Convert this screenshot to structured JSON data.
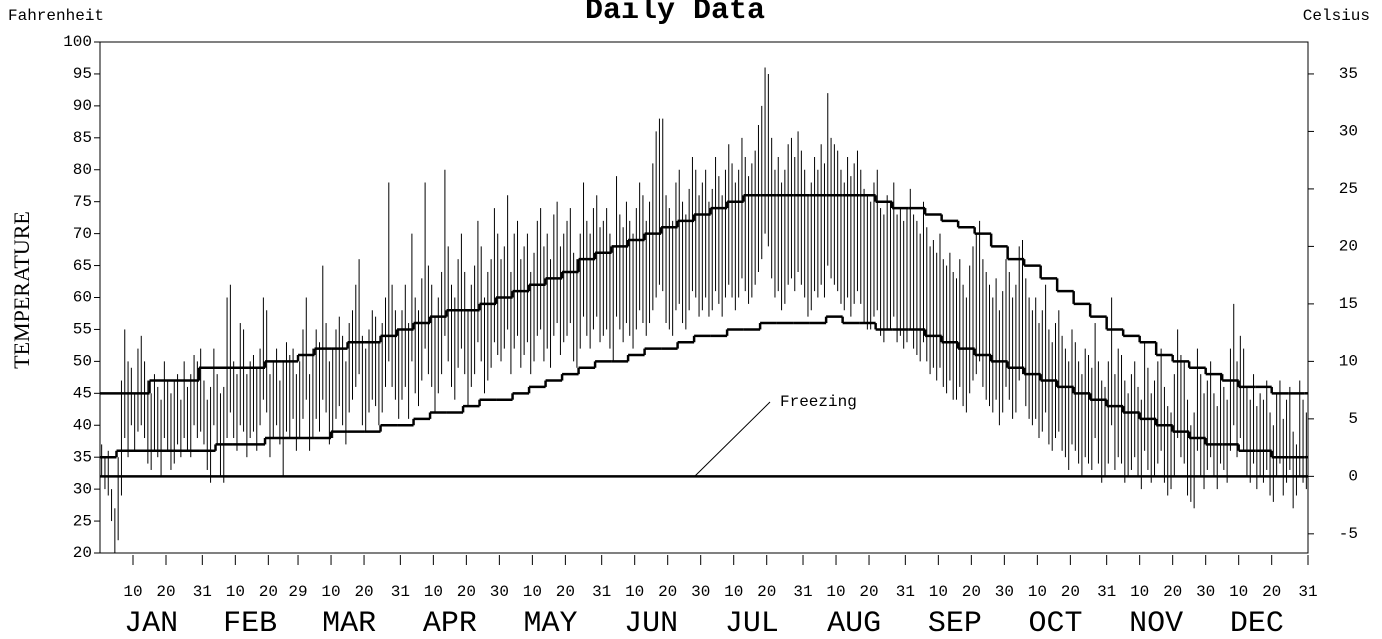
{
  "chart_data": {
    "type": "range",
    "title": "Daily Data",
    "y_unit_label": "Fahrenheit",
    "y2_unit_label": "Celsius",
    "y_label": "TEMPERATURE",
    "annotation": "Freezing",
    "freezing": 32,
    "color": "#000000",
    "xlim": [
      0,
      366
    ],
    "xticks": [
      {
        "value": 10,
        "label": "10"
      },
      {
        "value": 20,
        "label": "20"
      },
      {
        "value": 31,
        "label": "31"
      },
      {
        "value": 41,
        "label": "10"
      },
      {
        "value": 51,
        "label": "20"
      },
      {
        "value": 60,
        "label": "29"
      },
      {
        "value": 70,
        "label": "10"
      },
      {
        "value": 80,
        "label": "20"
      },
      {
        "value": 91,
        "label": "31"
      },
      {
        "value": 101,
        "label": "10"
      },
      {
        "value": 111,
        "label": "20"
      },
      {
        "value": 121,
        "label": "30"
      },
      {
        "value": 131,
        "label": "10"
      },
      {
        "value": 141,
        "label": "20"
      },
      {
        "value": 152,
        "label": "31"
      },
      {
        "value": 162,
        "label": "10"
      },
      {
        "value": 172,
        "label": "20"
      },
      {
        "value": 182,
        "label": "30"
      },
      {
        "value": 192,
        "label": "10"
      },
      {
        "value": 202,
        "label": "20"
      },
      {
        "value": 213,
        "label": "31"
      },
      {
        "value": 223,
        "label": "10"
      },
      {
        "value": 233,
        "label": "20"
      },
      {
        "value": 244,
        "label": "31"
      },
      {
        "value": 254,
        "label": "10"
      },
      {
        "value": 264,
        "label": "20"
      },
      {
        "value": 274,
        "label": "30"
      },
      {
        "value": 284,
        "label": "10"
      },
      {
        "value": 294,
        "label": "20"
      },
      {
        "value": 305,
        "label": "31"
      },
      {
        "value": 315,
        "label": "10"
      },
      {
        "value": 325,
        "label": "20"
      },
      {
        "value": 335,
        "label": "30"
      },
      {
        "value": 345,
        "label": "10"
      },
      {
        "value": 355,
        "label": "20"
      },
      {
        "value": 366,
        "label": "31"
      }
    ],
    "months": [
      "JAN",
      "FEB",
      "MAR",
      "APR",
      "MAY",
      "JUN",
      "JUL",
      "AUG",
      "SEP",
      "OCT",
      "NOV",
      "DEC"
    ],
    "ylim": [
      20,
      100
    ],
    "yticks": [
      20,
      25,
      30,
      35,
      40,
      45,
      50,
      55,
      60,
      65,
      70,
      75,
      80,
      85,
      90,
      95,
      100
    ],
    "y2lim": [
      -6.6667,
      37.7778
    ],
    "y2ticks": [
      -5,
      0,
      5,
      10,
      15,
      20,
      25,
      30,
      35
    ],
    "high": [
      37,
      35,
      36,
      30,
      27,
      35,
      47,
      55,
      50,
      49,
      45,
      52,
      54,
      50,
      47,
      45,
      48,
      46,
      44,
      50,
      47,
      45,
      47,
      48,
      44,
      50,
      46,
      48,
      51,
      50,
      52,
      47,
      44,
      46,
      52,
      48,
      45,
      46,
      60,
      62,
      50,
      48,
      56,
      55,
      48,
      50,
      51,
      49,
      52,
      60,
      58,
      48,
      50,
      52,
      47,
      50,
      53,
      51,
      52,
      48,
      50,
      55,
      60,
      48,
      52,
      55,
      53,
      65,
      56,
      50,
      52,
      55,
      57,
      54,
      50,
      56,
      58,
      62,
      66,
      54,
      52,
      55,
      58,
      57,
      53,
      56,
      60,
      78,
      62,
      58,
      55,
      58,
      62,
      56,
      70,
      60,
      58,
      63,
      78,
      65,
      62,
      57,
      60,
      64,
      80,
      68,
      62,
      60,
      66,
      70,
      64,
      58,
      62,
      65,
      72,
      68,
      60,
      64,
      66,
      74,
      70,
      66,
      68,
      76,
      64,
      70,
      72,
      66,
      68,
      70,
      64,
      67,
      72,
      74,
      68,
      70,
      66,
      73,
      75,
      68,
      70,
      72,
      74,
      67,
      66,
      70,
      78,
      72,
      70,
      74,
      76,
      71,
      72,
      74,
      70,
      68,
      79,
      73,
      71,
      75,
      72,
      70,
      74,
      78,
      76,
      72,
      75,
      81,
      86,
      88,
      88,
      76,
      74,
      72,
      78,
      80,
      75,
      73,
      77,
      82,
      80,
      76,
      78,
      80,
      75,
      77,
      82,
      79,
      76,
      80,
      84,
      81,
      78,
      80,
      85,
      82,
      79,
      81,
      83,
      87,
      90,
      96,
      95,
      85,
      80,
      82,
      78,
      80,
      84,
      85,
      82,
      86,
      83,
      80,
      76,
      78,
      82,
      80,
      84,
      81,
      92,
      85,
      84,
      83,
      80,
      78,
      82,
      79,
      81,
      83,
      80,
      77,
      76,
      75,
      78,
      80,
      74,
      73,
      76,
      75,
      78,
      73,
      74,
      72,
      74,
      77,
      73,
      72,
      70,
      75,
      71,
      68,
      69,
      67,
      70,
      66,
      65,
      67,
      64,
      63,
      66,
      62,
      60,
      65,
      68,
      70,
      72,
      66,
      64,
      62,
      60,
      63,
      58,
      61,
      66,
      64,
      60,
      62,
      68,
      69,
      63,
      60,
      58,
      60,
      56,
      58,
      62,
      55,
      53,
      56,
      58,
      54,
      52,
      50,
      55,
      53,
      50,
      48,
      52,
      51,
      49,
      56,
      50,
      47,
      46,
      50,
      60,
      48,
      52,
      51,
      47,
      45,
      48,
      50,
      46,
      44,
      53,
      49,
      45,
      47,
      50,
      52,
      46,
      43,
      42,
      48,
      55,
      51,
      50,
      44,
      40,
      42,
      52,
      48,
      45,
      47,
      50,
      45,
      43,
      48,
      46,
      44,
      52,
      59,
      50,
      54,
      52,
      46,
      44,
      48,
      43,
      45,
      44,
      47,
      42,
      40,
      45,
      47,
      41,
      44,
      46,
      39,
      37,
      47,
      44,
      42
    ],
    "low": [
      32,
      30,
      29,
      25,
      20,
      22,
      29,
      38,
      35,
      40,
      36,
      39,
      40,
      38,
      34,
      33,
      36,
      35,
      32,
      38,
      36,
      33,
      34,
      37,
      35,
      38,
      36,
      35,
      40,
      38,
      39,
      37,
      33,
      31,
      40,
      37,
      32,
      31,
      38,
      42,
      38,
      36,
      40,
      39,
      35,
      38,
      39,
      36,
      40,
      44,
      42,
      35,
      38,
      40,
      37,
      32,
      39,
      38,
      41,
      36,
      38,
      41,
      44,
      36,
      38,
      41,
      39,
      44,
      42,
      37,
      38,
      41,
      43,
      40,
      37,
      42,
      44,
      46,
      48,
      40,
      39,
      42,
      44,
      43,
      40,
      42,
      46,
      50,
      46,
      44,
      41,
      44,
      46,
      41,
      50,
      45,
      43,
      47,
      52,
      48,
      46,
      42,
      45,
      48,
      54,
      50,
      46,
      44,
      49,
      52,
      48,
      43,
      46,
      48,
      53,
      50,
      45,
      47,
      49,
      53,
      51,
      50,
      52,
      55,
      48,
      52,
      54,
      49,
      51,
      53,
      48,
      50,
      54,
      55,
      50,
      52,
      49,
      54,
      56,
      51,
      53,
      54,
      56,
      50,
      49,
      52,
      57,
      54,
      52,
      55,
      57,
      53,
      54,
      55,
      52,
      50,
      57,
      55,
      53,
      56,
      54,
      52,
      55,
      58,
      56,
      54,
      56,
      58,
      60,
      62,
      61,
      56,
      55,
      54,
      58,
      59,
      56,
      55,
      58,
      61,
      60,
      57,
      58,
      60,
      57,
      58,
      61,
      59,
      57,
      60,
      62,
      60,
      58,
      60,
      63,
      61,
      59,
      60,
      62,
      64,
      66,
      70,
      68,
      63,
      60,
      61,
      58,
      59,
      62,
      63,
      61,
      64,
      62,
      60,
      57,
      58,
      61,
      60,
      62,
      60,
      65,
      63,
      62,
      61,
      59,
      58,
      60,
      57,
      59,
      61,
      59,
      56,
      55,
      55,
      57,
      58,
      54,
      53,
      55,
      55,
      57,
      53,
      54,
      52,
      53,
      55,
      52,
      51,
      50,
      53,
      50,
      48,
      49,
      47,
      49,
      46,
      45,
      47,
      44,
      44,
      46,
      43,
      42,
      45,
      47,
      48,
      50,
      46,
      44,
      43,
      42,
      44,
      40,
      42,
      46,
      44,
      41,
      42,
      47,
      48,
      43,
      41,
      40,
      41,
      38,
      39,
      42,
      37,
      36,
      38,
      39,
      36,
      35,
      33,
      37,
      36,
      34,
      32,
      35,
      34,
      33,
      38,
      34,
      31,
      32,
      34,
      40,
      33,
      35,
      34,
      31,
      32,
      33,
      35,
      32,
      30,
      36,
      33,
      31,
      32,
      34,
      36,
      31,
      29,
      30,
      32,
      38,
      35,
      34,
      29,
      28,
      27,
      36,
      32,
      30,
      33,
      35,
      32,
      30,
      34,
      33,
      31,
      36,
      40,
      35,
      38,
      36,
      32,
      31,
      34,
      30,
      32,
      31,
      33,
      29,
      28,
      32,
      34,
      29,
      31,
      33,
      27,
      29,
      32,
      31,
      30
    ],
    "normal_x": [
      1,
      6,
      11,
      16,
      21,
      26,
      31,
      36,
      41,
      46,
      51,
      56,
      61,
      66,
      71,
      76,
      81,
      86,
      91,
      96,
      101,
      106,
      111,
      116,
      121,
      126,
      131,
      136,
      141,
      146,
      151,
      156,
      161,
      166,
      171,
      176,
      181,
      186,
      191,
      196,
      201,
      206,
      211,
      216,
      221,
      226,
      231,
      236,
      241,
      246,
      251,
      256,
      261,
      266,
      271,
      276,
      281,
      286,
      291,
      296,
      301,
      306,
      311,
      316,
      321,
      326,
      331,
      336,
      341,
      346,
      351,
      356,
      361,
      366
    ],
    "normal_high": [
      45,
      45,
      45,
      47,
      47,
      47,
      49,
      49,
      49,
      49,
      50,
      50,
      51,
      52,
      52,
      53,
      53,
      54,
      55,
      56,
      57,
      58,
      58,
      59,
      60,
      61,
      62,
      63,
      64,
      66,
      67,
      68,
      69,
      70,
      71,
      72,
      73,
      74,
      75,
      76,
      76,
      76,
      76,
      76,
      76,
      76,
      76,
      75,
      74,
      74,
      73,
      72,
      71,
      70,
      68,
      66,
      65,
      63,
      61,
      59,
      57,
      55,
      54,
      53,
      51,
      50,
      49,
      48,
      47,
      46,
      46,
      45,
      45,
      45
    ],
    "normal_low": [
      35,
      36,
      36,
      36,
      36,
      36,
      36,
      37,
      37,
      37,
      38,
      38,
      38,
      38,
      39,
      39,
      39,
      40,
      40,
      41,
      42,
      42,
      43,
      44,
      44,
      45,
      46,
      47,
      48,
      49,
      50,
      50,
      51,
      52,
      52,
      53,
      54,
      54,
      55,
      55,
      56,
      56,
      56,
      56,
      57,
      56,
      56,
      55,
      55,
      55,
      54,
      53,
      52,
      51,
      50,
      49,
      48,
      47,
      46,
      45,
      44,
      43,
      42,
      41,
      40,
      39,
      38,
      37,
      37,
      36,
      36,
      35,
      35,
      35
    ]
  }
}
